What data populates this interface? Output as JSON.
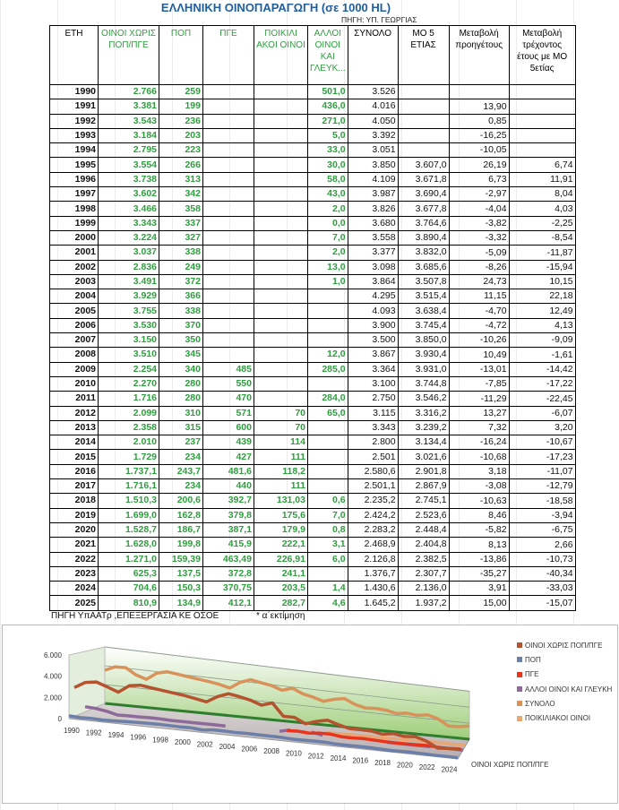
{
  "title": "ΕΛΛΗΝΙΚΗ ΟΙΝΟΠΑΡΑΓΩΓΗ  (σε 1000 HL)",
  "source_top": "ΠΗΓΗ:  ΥΠ. ΓΕΩΡΓΙΑΣ",
  "headers": [
    "ΕΤΗ",
    "ΟΙΝΟΙ ΧΩΡΙΣ ΠΟΠ/ΠΓΕ",
    "ΠΟΠ",
    "ΠΓΕ",
    "ΠΟΙΚΙΛΙ ΑΚΟΙ ΟΙΝΟΙ",
    "ΑΛΛΟΙ ΟΙΝΟΙ ΚΑΙ ΓΛΕΥΚ...",
    "ΣΥΝΟΛΟ",
    "ΜΟ 5 ΕΤΙΑΣ",
    "Μεταβολή προηγέτους",
    "Μεταβολή τρέχοντος έτους με  ΜΟ 5ετίας"
  ],
  "rows": [
    [
      "1990",
      "2.766",
      "259",
      "",
      "",
      "501,0",
      "3.526",
      "",
      "",
      ""
    ],
    [
      "1991",
      "3.381",
      "199",
      "",
      "",
      "436,0",
      "4.016",
      "",
      "13,90",
      ""
    ],
    [
      "1992",
      "3.543",
      "236",
      "",
      "",
      "271,0",
      "4.050",
      "",
      "0,85",
      ""
    ],
    [
      "1993",
      "3.184",
      "203",
      "",
      "",
      "5,0",
      "3.392",
      "",
      "-16,25",
      ""
    ],
    [
      "1994",
      "2.795",
      "223",
      "",
      "",
      "33,0",
      "3.051",
      "",
      "-10,05",
      ""
    ],
    [
      "1995",
      "3.554",
      "266",
      "",
      "",
      "30,0",
      "3.850",
      "3.607,0",
      "26,19",
      "6,74"
    ],
    [
      "1996",
      "3.738",
      "313",
      "",
      "",
      "58,0",
      "4.109",
      "3.671,8",
      "6,73",
      "11,91"
    ],
    [
      "1997",
      "3.602",
      "342",
      "",
      "",
      "43,0",
      "3.987",
      "3.690,4",
      "-2,97",
      "8,04"
    ],
    [
      "1998",
      "3.466",
      "358",
      "",
      "",
      "2,0",
      "3.826",
      "3.677,8",
      "-4,04",
      "4,03"
    ],
    [
      "1999",
      "3.343",
      "337",
      "",
      "",
      "0,0",
      "3.680",
      "3.764,6",
      "-3,82",
      "-2,25"
    ],
    [
      "2000",
      "3.224",
      "327",
      "",
      "",
      "7,0",
      "3.558",
      "3.890,4",
      "-3,32",
      "-8,54"
    ],
    [
      "2001",
      "3.037",
      "338",
      "",
      "",
      "2,0",
      "3.377",
      "3.832,0",
      "-5,09",
      "-11,87"
    ],
    [
      "2002",
      "2.836",
      "249",
      "",
      "",
      "13,0",
      "3.098",
      "3.685,6",
      "-8,26",
      "-15,94"
    ],
    [
      "2003",
      "3.491",
      "372",
      "",
      "",
      "1,0",
      "3.864",
      "3.507,8",
      "24,73",
      "10,15"
    ],
    [
      "2004",
      "3.929",
      "366",
      "",
      "",
      "",
      "4.295",
      "3.515,4",
      "11,15",
      "22,18"
    ],
    [
      "2005",
      "3.755",
      "338",
      "",
      "",
      "",
      "4.093",
      "3.638,4",
      "-4,70",
      "12,49"
    ],
    [
      "2006",
      "3.530",
      "370",
      "",
      "",
      "",
      "3.900",
      "3.745,4",
      "-4,72",
      "4,13"
    ],
    [
      "2007",
      "3.150",
      "350",
      "",
      "",
      "",
      "3.500",
      "3.850,0",
      "-10,26",
      "-9,09"
    ],
    [
      "2008",
      "3.510",
      "345",
      "",
      "",
      "12,0",
      "3.867",
      "3.930,4",
      "10,49",
      "-1,61"
    ],
    [
      "2009",
      "2.254",
      "340",
      "485",
      "",
      "285,0",
      "3.364",
      "3.931,0",
      "-13,01",
      "-14,42"
    ],
    [
      "2010",
      "2.270",
      "280",
      "550",
      "",
      "",
      "3.100",
      "3.744,8",
      "-7,85",
      "-17,22"
    ],
    [
      "2011",
      "1.716",
      "280",
      "470",
      "",
      "284,0",
      "2.750",
      "3.546,2",
      "-11,29",
      "-22,45"
    ],
    [
      "2012",
      "2.099",
      "310",
      "571",
      "70",
      "65,0",
      "3.115",
      "3.316,2",
      "13,27",
      "-6,07"
    ],
    [
      "2013",
      "2.358",
      "315",
      "600",
      "70",
      "",
      "3.343",
      "3.239,2",
      "7,32",
      "3,20"
    ],
    [
      "2014",
      "2.010",
      "237",
      "439",
      "114",
      "",
      "2.800",
      "3.134,4",
      "-16,24",
      "-10,67"
    ],
    [
      "2015",
      "1.729",
      "234",
      "427",
      "111",
      "",
      "2.501",
      "3.021,6",
      "-10,68",
      "-17,23"
    ],
    [
      "2016",
      "1.737,1",
      "243,7",
      "481,6",
      "118,2",
      "",
      "2.580,6",
      "2.901,8",
      "3,18",
      "-11,07"
    ],
    [
      "2017",
      "1.716,1",
      "234",
      "440",
      "111",
      "",
      "2.501,1",
      "2.867,9",
      "-3,08",
      "-12,79"
    ],
    [
      "2018",
      "1.510,3",
      "200,6",
      "392,7",
      "131,03",
      "0,6",
      "2.235,2",
      "2.745,1",
      "-10,63",
      "-18,58"
    ],
    [
      "2019",
      "1.699,0",
      "162,8",
      "379,8",
      "175,6",
      "7,0",
      "2.424,2",
      "2.523,6",
      "8,46",
      "-3,94"
    ],
    [
      "2020",
      "1.528,7",
      "186,7",
      "387,1",
      "179,9",
      "0,8",
      "2.283,2",
      "2.448,4",
      "-5,82",
      "-6,75"
    ],
    [
      "2021",
      "1.628,0",
      "199,8",
      "415,9",
      "222,1",
      "3,1",
      "2.468,9",
      "2.404,8",
      "8,13",
      "2,66"
    ],
    [
      "2022",
      "1.271,0",
      "159,39",
      "463,49",
      "226,91",
      "6,0",
      "2.126,8",
      "2.382,5",
      "-13,86",
      "-10,73"
    ],
    [
      "2023",
      "625,3",
      "137,5",
      "372,8",
      "241,1",
      "",
      "1.376,7",
      "2.307,7",
      "-35,27",
      "-40,34"
    ],
    [
      "2024",
      "704,6",
      "150,3",
      "370,75",
      "203,5",
      "1,4",
      "1.430,6",
      "2.136,0",
      "3,91",
      "-33,03"
    ],
    [
      "2025",
      "810,9",
      "134,9",
      "412,1",
      "282,7",
      "4,6",
      "1.645,2",
      "1.937,2",
      "15,00",
      "-15,07"
    ]
  ],
  "footer": {
    "source": "ΠΗΓΗ ΥπΑΑΤρ ,ΕΠΕΞΕΡΓΑΣΙΑ ΚΕ ΟΣΟΕ",
    "note": "* α΄εκτίμηση"
  },
  "chart_data": {
    "type": "line",
    "three_d": true,
    "legend_position": "right",
    "y_ticks": [
      "0",
      "2.000",
      "4.000",
      "6.000"
    ],
    "ylim": [
      0,
      6000
    ],
    "x_tick_labels": [
      "1990",
      "1992",
      "1994",
      "1996",
      "1998",
      "2000",
      "2002",
      "2004",
      "2006",
      "2008",
      "2010",
      "2012",
      "2014",
      "2016",
      "2018",
      "2020",
      "2022",
      "2024"
    ],
    "depth_axis_label": "ΟΙΝΟΙ ΧΩΡΙΣ ΠΟΠ/ΠΓΕ",
    "x": [
      1990,
      1991,
      1992,
      1993,
      1994,
      1995,
      1996,
      1997,
      1998,
      1999,
      2000,
      2001,
      2002,
      2003,
      2004,
      2005,
      2006,
      2007,
      2008,
      2009,
      2010,
      2011,
      2012,
      2013,
      2014,
      2015,
      2016,
      2017,
      2018,
      2019,
      2020,
      2021,
      2022,
      2023,
      2024,
      2025
    ],
    "series": [
      {
        "name": "ΟΙΝΟΙ ΧΩΡΙΣ ΠΟΠ/ΠΓΕ",
        "color": "#b5532f",
        "values": [
          2766,
          3381,
          3543,
          3184,
          2795,
          3554,
          3738,
          3602,
          3466,
          3343,
          3224,
          3037,
          2836,
          3491,
          3929,
          3755,
          3530,
          3150,
          3510,
          2254,
          2270,
          1716,
          2099,
          2358,
          2010,
          1729,
          1737.1,
          1716.1,
          1510.3,
          1699.0,
          1528.7,
          1628.0,
          1271.0,
          625.3,
          704.6,
          810.9
        ]
      },
      {
        "name": "ΠΟΠ",
        "color": "#6b7fa8",
        "values": [
          259,
          199,
          236,
          203,
          223,
          266,
          313,
          342,
          358,
          337,
          327,
          338,
          249,
          372,
          366,
          338,
          370,
          350,
          345,
          340,
          280,
          280,
          310,
          315,
          237,
          234,
          243.7,
          234,
          200.6,
          162.8,
          186.7,
          199.8,
          159.39,
          137.5,
          150.3,
          134.9
        ]
      },
      {
        "name": "ΠΓΕ",
        "color": "#e8341c",
        "values": [
          null,
          null,
          null,
          null,
          null,
          null,
          null,
          null,
          null,
          null,
          null,
          null,
          null,
          null,
          null,
          null,
          null,
          null,
          null,
          485,
          550,
          470,
          571,
          600,
          439,
          427,
          481.6,
          440,
          392.7,
          379.8,
          387.1,
          415.9,
          463.49,
          372.8,
          370.75,
          412.1
        ]
      },
      {
        "name": "ΑΛΛΟΙ  ΟΙΝΟΙ  ΚΑΙ  ΓΛΕΥΚΗ",
        "color": "#8d6a9a",
        "values": [
          501,
          436,
          271,
          5,
          33,
          30,
          58,
          43,
          2,
          0,
          7,
          2,
          13,
          1,
          null,
          null,
          null,
          null,
          12,
          285,
          null,
          284,
          65,
          null,
          null,
          null,
          null,
          null,
          0.6,
          7.0,
          0.8,
          3.1,
          6.0,
          null,
          1.4,
          4.6
        ]
      },
      {
        "name": "ΣΥΝΟΛΟ",
        "color": "#d9925a",
        "values": [
          3526,
          4016,
          4050,
          3392,
          3051,
          3850,
          4109,
          3987,
          3826,
          3680,
          3558,
          3377,
          3098,
          3864,
          4295,
          4093,
          3900,
          3500,
          3867,
          3364,
          3100,
          2750,
          3115,
          3343,
          2800,
          2501,
          2580.6,
          2501.1,
          2235.2,
          2424.2,
          2283.2,
          2468.9,
          2126.8,
          1376.7,
          1430.6,
          1645.2
        ]
      },
      {
        "name": "ΠΟΙΚΙΛΙΑΚΟΙ ΟΙΝΟΙ",
        "color": "#e8a672",
        "values": [
          null,
          null,
          null,
          null,
          null,
          null,
          null,
          null,
          null,
          null,
          null,
          null,
          null,
          null,
          null,
          null,
          null,
          null,
          null,
          null,
          null,
          null,
          70,
          70,
          114,
          111,
          118.2,
          111,
          131.03,
          175.6,
          179.9,
          222.1,
          226.91,
          241.1,
          203.5,
          282.7
        ]
      }
    ]
  }
}
